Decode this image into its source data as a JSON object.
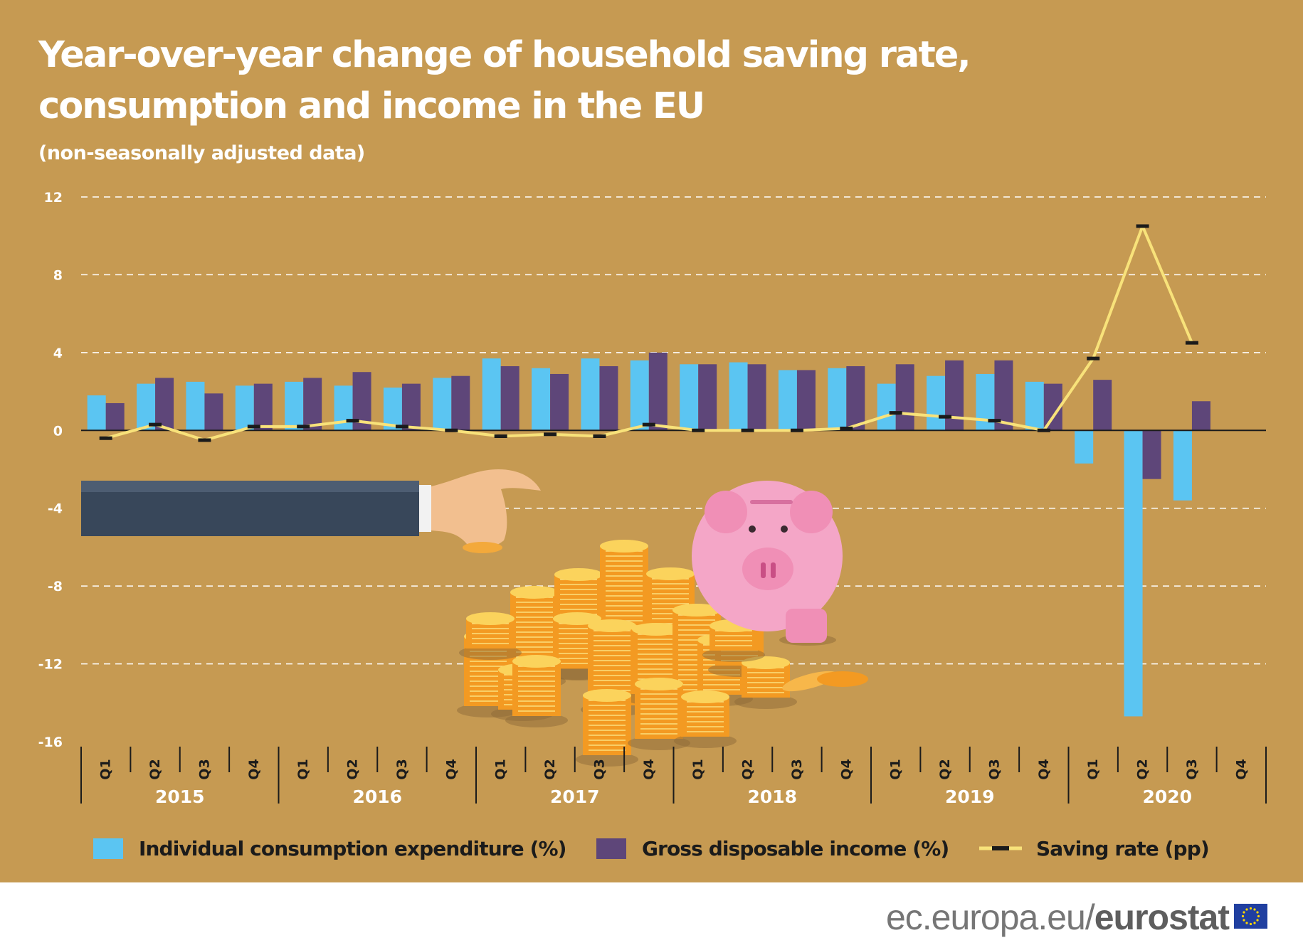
{
  "title_line1": "Year-over-year change of household saving rate,",
  "title_line2": "consumption and income in the EU",
  "subtitle": "(non-seasonally adjusted data)",
  "colors": {
    "background": "#c69a52",
    "consumption": "#5bc5f2",
    "income": "#5e4679",
    "saving_line": "#f8e27a",
    "saving_marker": "#1b1b1b"
  },
  "chart_data": {
    "type": "bar",
    "ylim": [
      -16,
      12
    ],
    "yticks": [
      12,
      8,
      4,
      0,
      -4,
      -8,
      -12,
      -16
    ],
    "grid": true,
    "legend_position": "bottom",
    "quarters": [
      "Q1",
      "Q2",
      "Q3",
      "Q4",
      "Q1",
      "Q2",
      "Q3",
      "Q4",
      "Q1",
      "Q2",
      "Q3",
      "Q4",
      "Q1",
      "Q2",
      "Q3",
      "Q4",
      "Q1",
      "Q2",
      "Q3",
      "Q4",
      "Q1",
      "Q2",
      "Q3",
      "Q4"
    ],
    "years": [
      "2015",
      "2016",
      "2017",
      "2018",
      "2019",
      "2020"
    ],
    "series": [
      {
        "name": "Individual consumption expenditure (%)",
        "type": "bar",
        "values": [
          1.8,
          2.4,
          2.5,
          2.3,
          2.5,
          2.3,
          2.2,
          2.7,
          3.7,
          3.2,
          3.7,
          3.6,
          3.4,
          3.5,
          3.1,
          3.2,
          2.4,
          2.8,
          2.9,
          2.5,
          -1.7,
          -14.7,
          -3.6,
          null
        ]
      },
      {
        "name": "Gross disposable income (%)",
        "type": "bar",
        "values": [
          1.4,
          2.7,
          1.9,
          2.4,
          2.7,
          3.0,
          2.4,
          2.8,
          3.3,
          2.9,
          3.3,
          4.0,
          3.4,
          3.4,
          3.1,
          3.3,
          3.4,
          3.6,
          3.6,
          2.4,
          2.6,
          -2.5,
          1.5,
          null
        ]
      },
      {
        "name": "Saving rate (pp)",
        "type": "line",
        "values": [
          -0.4,
          0.3,
          -0.5,
          0.2,
          0.2,
          0.5,
          0.2,
          0.0,
          -0.3,
          -0.2,
          -0.3,
          0.3,
          0.0,
          0.0,
          0.0,
          0.1,
          0.9,
          0.7,
          0.5,
          0.0,
          3.7,
          10.5,
          4.5,
          null
        ]
      }
    ]
  },
  "legend": {
    "consumption": "Individual consumption expenditure (%)",
    "income": "Gross disposable income (%)",
    "saving": "Saving rate (pp)"
  },
  "footer": {
    "brand_prefix": "ec.europa.eu/",
    "brand_bold": "eurostat"
  },
  "illustration_icons": [
    "sleeve-hand-icon",
    "coin-stacks-icon",
    "piggy-bank-icon"
  ]
}
